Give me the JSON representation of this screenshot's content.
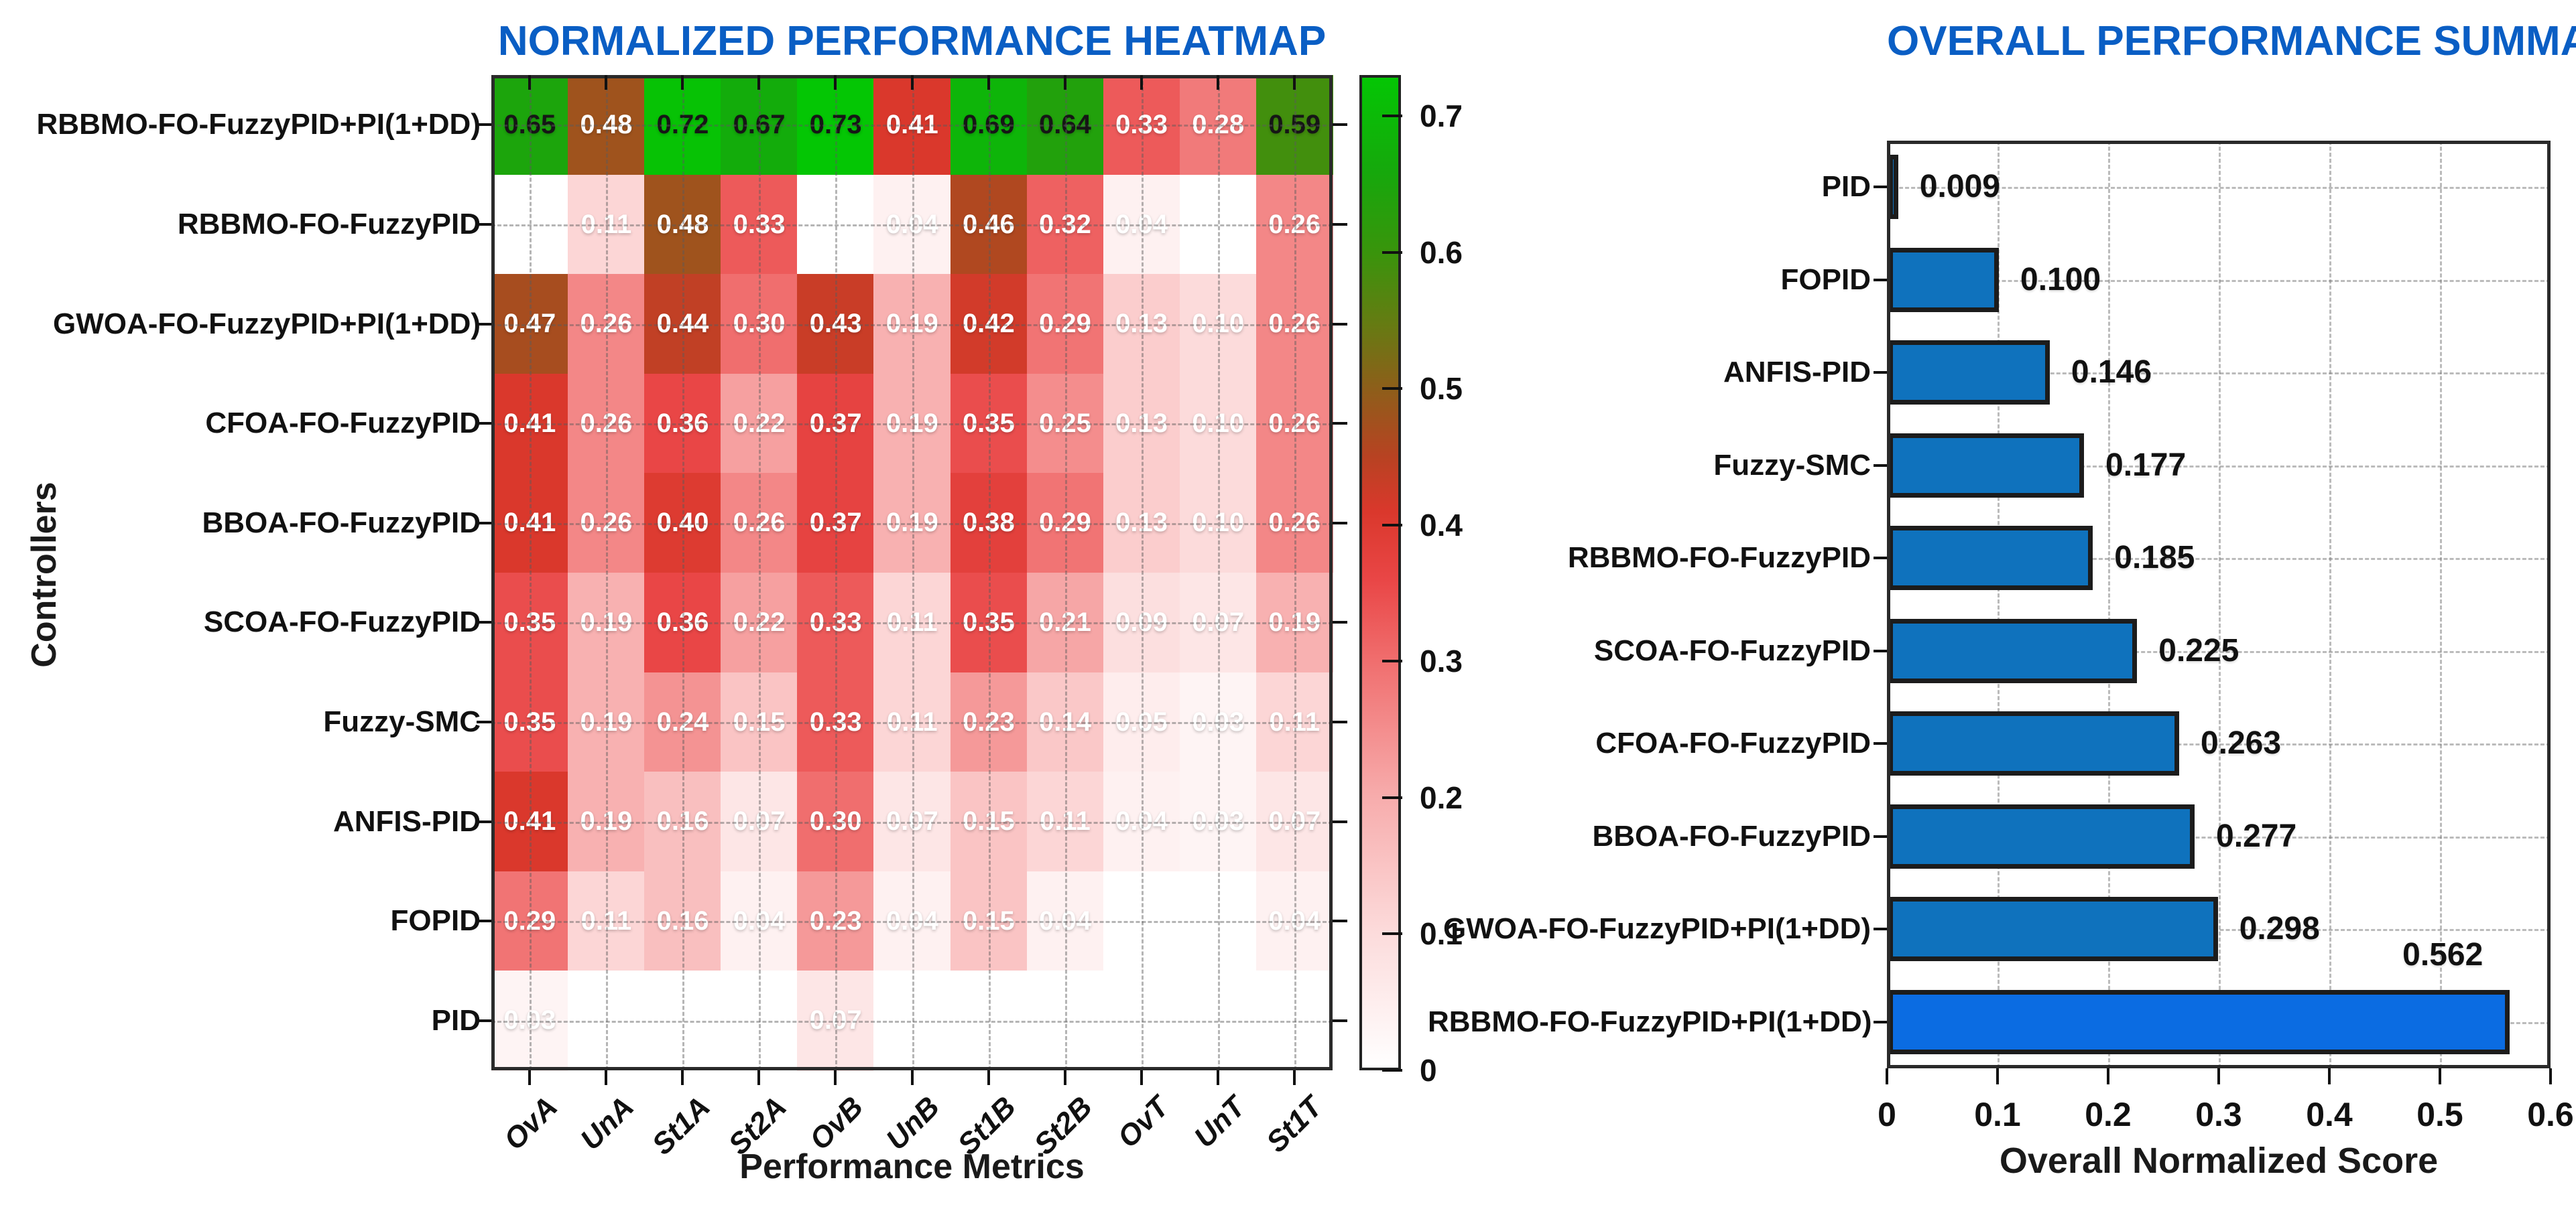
{
  "styles": {
    "title_color": "#0a5ec4",
    "axis_color": "#2a2a2a",
    "grid_color": "#8c8c8c",
    "background": "#ffffff"
  },
  "chart_data": [
    {
      "type": "heatmap",
      "title": "NORMALIZED PERFORMANCE HEATMAP",
      "xlabel": "Performance Metrics",
      "ylabel": "Controllers",
      "columns": [
        "OvA",
        "UnA",
        "St1A",
        "St2A",
        "OvB",
        "UnB",
        "St1B",
        "St2B",
        "OvT",
        "UnT",
        "St1T"
      ],
      "rows": [
        {
          "label": "RBBMO-FO-FuzzyPID+PI(1+DD)",
          "values": [
            0.65,
            0.48,
            0.72,
            0.67,
            0.73,
            0.41,
            0.69,
            0.64,
            0.33,
            0.28,
            0.59
          ]
        },
        {
          "label": "RBBMO-FO-FuzzyPID",
          "values": [
            null,
            0.11,
            0.48,
            0.33,
            null,
            0.04,
            0.46,
            0.32,
            0.04,
            null,
            0.26
          ]
        },
        {
          "label": "GWOA-FO-FuzzyPID+PI(1+DD)",
          "values": [
            0.47,
            0.26,
            0.44,
            0.3,
            0.43,
            0.19,
            0.42,
            0.29,
            0.13,
            0.1,
            0.26
          ]
        },
        {
          "label": "CFOA-FO-FuzzyPID",
          "values": [
            0.41,
            0.26,
            0.36,
            0.22,
            0.37,
            0.19,
            0.35,
            0.25,
            0.13,
            0.1,
            0.26
          ]
        },
        {
          "label": "BBOA-FO-FuzzyPID",
          "values": [
            0.41,
            0.26,
            0.4,
            0.26,
            0.37,
            0.19,
            0.38,
            0.29,
            0.13,
            0.1,
            0.26
          ]
        },
        {
          "label": "SCOA-FO-FuzzyPID",
          "values": [
            0.35,
            0.19,
            0.36,
            0.22,
            0.33,
            0.11,
            0.35,
            0.21,
            0.09,
            0.07,
            0.19
          ]
        },
        {
          "label": "Fuzzy-SMC",
          "values": [
            0.35,
            0.19,
            0.24,
            0.15,
            0.33,
            0.11,
            0.23,
            0.14,
            0.05,
            0.03,
            0.11
          ]
        },
        {
          "label": "ANFIS-PID",
          "values": [
            0.41,
            0.19,
            0.16,
            0.07,
            0.3,
            0.07,
            0.15,
            0.11,
            0.04,
            0.03,
            0.07
          ]
        },
        {
          "label": "FOPID",
          "values": [
            0.29,
            0.11,
            0.16,
            0.04,
            0.23,
            0.04,
            0.15,
            0.04,
            null,
            null,
            0.04
          ]
        },
        {
          "label": "PID",
          "values": [
            0.03,
            null,
            null,
            null,
            0.07,
            null,
            null,
            null,
            null,
            null,
            null
          ]
        }
      ],
      "value_decimals": 2,
      "text_color_threshold": 0.5,
      "grid": true,
      "colorbar": {
        "min": 0,
        "max": 0.73,
        "ticks": [
          0,
          0.1,
          0.2,
          0.3,
          0.4,
          0.5,
          0.6,
          0.7
        ],
        "colormap": [
          {
            "value": 0.0,
            "color": "#ffffff"
          },
          {
            "value": 0.1,
            "color": "#fcdbdb"
          },
          {
            "value": 0.2,
            "color": "#f7acac"
          },
          {
            "value": 0.3,
            "color": "#f06e6e"
          },
          {
            "value": 0.36,
            "color": "#e94646"
          },
          {
            "value": 0.41,
            "color": "#da382c"
          },
          {
            "value": 0.45,
            "color": "#b84222"
          },
          {
            "value": 0.5,
            "color": "#8e5e1a"
          },
          {
            "value": 0.55,
            "color": "#647c12"
          },
          {
            "value": 0.6,
            "color": "#3a940c"
          },
          {
            "value": 0.66,
            "color": "#16a80c"
          },
          {
            "value": 0.73,
            "color": "#04c604"
          }
        ]
      }
    },
    {
      "type": "bar",
      "orientation": "horizontal",
      "title": "OVERALL PERFORMANCE SUMMARY",
      "xlabel": "Overall Normalized Score",
      "categories": [
        "PID",
        "FOPID",
        "ANFIS-PID",
        "Fuzzy-SMC",
        "RBBMO-FO-FuzzyPID",
        "SCOA-FO-FuzzyPID",
        "CFOA-FO-FuzzyPID",
        "BBOA-FO-FuzzyPID",
        "GWOA-FO-FuzzyPID+PI(1+DD)",
        "RBBMO-FO-FuzzyPID+PI(1+DD)"
      ],
      "values": [
        0.009,
        0.1,
        0.146,
        0.177,
        0.185,
        0.225,
        0.263,
        0.277,
        0.298,
        0.562
      ],
      "value_labels": [
        "0.009",
        "0.100",
        "0.146",
        "0.177",
        "0.185",
        "0.225",
        "0.263",
        "0.277",
        "0.298",
        "0.562"
      ],
      "xlim": [
        0,
        0.6
      ],
      "xticks": [
        0,
        0.1,
        0.2,
        0.3,
        0.4,
        0.5,
        0.6
      ],
      "grid": true,
      "bar_color": "#0f72bd",
      "highlight_last_bar_color": "#0b6ce2",
      "bar_edge_color": "#1c1c1c"
    }
  ]
}
